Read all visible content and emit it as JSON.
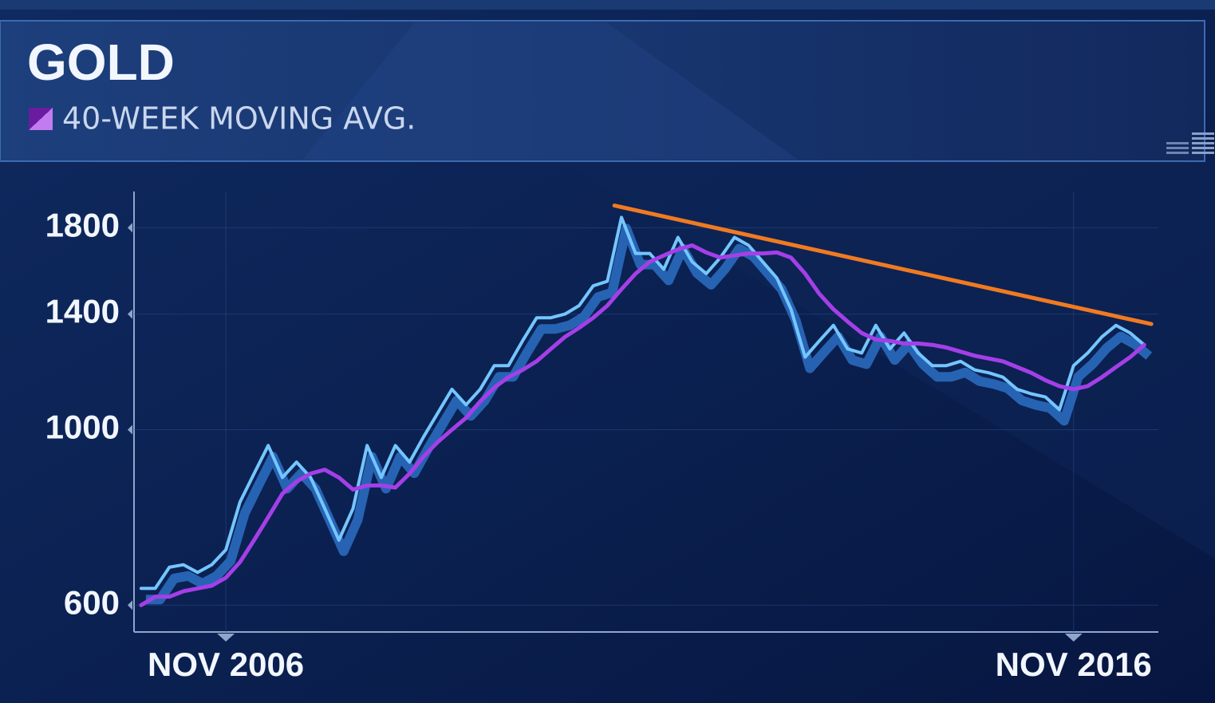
{
  "chart_data": {
    "type": "line",
    "title": "GOLD",
    "log": true,
    "grid": true,
    "legend": "top-left",
    "x": [
      "2005-11",
      "2006-01",
      "2006-03",
      "2006-05",
      "2006-07",
      "2006-09",
      "2006-11",
      "2007-01",
      "2007-03",
      "2007-05",
      "2007-07",
      "2007-09",
      "2007-11",
      "2008-01",
      "2008-03",
      "2008-05",
      "2008-07",
      "2008-09",
      "2008-11",
      "2009-01",
      "2009-03",
      "2009-05",
      "2009-07",
      "2009-09",
      "2009-11",
      "2010-01",
      "2010-03",
      "2010-05",
      "2010-07",
      "2010-09",
      "2010-11",
      "2011-01",
      "2011-03",
      "2011-05",
      "2011-07",
      "2011-09",
      "2011-11",
      "2012-01",
      "2012-03",
      "2012-05",
      "2012-07",
      "2012-09",
      "2012-11",
      "2013-01",
      "2013-03",
      "2013-05",
      "2013-07",
      "2013-09",
      "2013-11",
      "2014-01",
      "2014-03",
      "2014-05",
      "2014-07",
      "2014-09",
      "2014-11",
      "2015-01",
      "2015-03",
      "2015-05",
      "2015-07",
      "2015-09",
      "2015-11",
      "2016-01",
      "2016-03",
      "2016-05",
      "2016-07",
      "2016-09",
      "2016-11",
      "2017-01",
      "2017-03",
      "2017-05",
      "2017-07",
      "2017-09"
    ],
    "series": [
      {
        "color": "#74c6ff",
        "values": [
          630,
          630,
          670,
          675,
          660,
          675,
          705,
          810,
          880,
          955,
          870,
          910,
          870,
          795,
          725,
          795,
          955,
          870,
          955,
          910,
          980,
          1050,
          1125,
          1075,
          1125,
          1205,
          1205,
          1295,
          1385,
          1385,
          1400,
          1435,
          1520,
          1540,
          1855,
          1670,
          1670,
          1595,
          1750,
          1630,
          1575,
          1650,
          1750,
          1710,
          1630,
          1555,
          1420,
          1235,
          1295,
          1355,
          1265,
          1250,
          1355,
          1265,
          1325,
          1250,
          1205,
          1205,
          1220,
          1190,
          1180,
          1165,
          1125,
          1110,
          1100,
          1060,
          1205,
          1250,
          1310,
          1355,
          1325,
          1280
        ]
      },
      {
        "name": "40-WEEK MOVING AVG.",
        "color": "#a43fe8",
        "values": [
          600,
          615,
          615,
          625,
          630,
          635,
          650,
          680,
          725,
          775,
          830,
          860,
          880,
          890,
          870,
          840,
          850,
          850,
          845,
          880,
          925,
          965,
          1000,
          1035,
          1085,
          1130,
          1165,
          1190,
          1220,
          1265,
          1310,
          1345,
          1385,
          1435,
          1505,
          1575,
          1630,
          1660,
          1690,
          1710,
          1675,
          1650,
          1660,
          1670,
          1670,
          1675,
          1650,
          1575,
          1485,
          1420,
          1370,
          1325,
          1300,
          1295,
          1285,
          1285,
          1280,
          1270,
          1255,
          1240,
          1230,
          1220,
          1200,
          1180,
          1155,
          1135,
          1125,
          1135,
          1165,
          1200,
          1235,
          1280
        ]
      }
    ],
    "trendline": {
      "x": [
        "2011-06",
        "2017-10"
      ],
      "values": [
        1920,
        1360
      ],
      "color": "#f07a22"
    },
    "xlim": [
      "2005-10",
      "2017-11"
    ],
    "xticks": [
      {
        "value": "2006-11",
        "label": "NOV 2006"
      },
      {
        "value": "2016-11",
        "label": "NOV 2016"
      }
    ],
    "ylim": [
      555,
      2000
    ],
    "yticks": [
      600,
      1000,
      1400,
      1800
    ]
  }
}
